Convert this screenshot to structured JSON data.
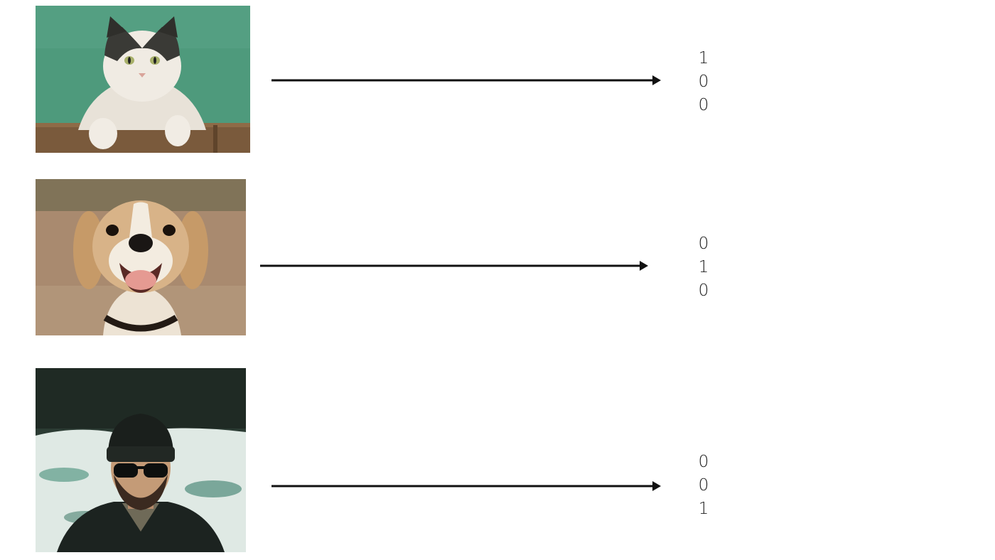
{
  "rows": [
    {
      "subject": "cat",
      "icon": "cat-photo",
      "vector": [
        "1",
        "0",
        "0"
      ]
    },
    {
      "subject": "dog",
      "icon": "dog-photo",
      "vector": [
        "0",
        "1",
        "0"
      ]
    },
    {
      "subject": "person",
      "icon": "person-photo",
      "vector": [
        "0",
        "0",
        "1"
      ]
    }
  ],
  "colors": {
    "cat_background": "#4e9a7c",
    "dog_background": "#a98a6f",
    "person_background": "#2b3b33",
    "arrow": "#111111",
    "text": "#1a1a1a"
  }
}
